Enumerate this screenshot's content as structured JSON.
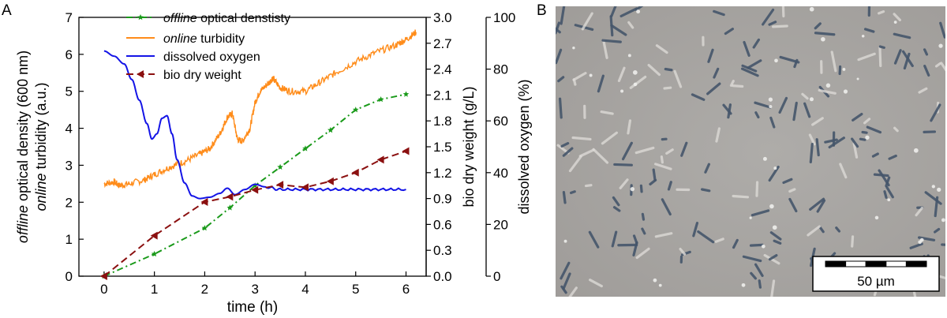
{
  "panels": {
    "a_label": "A",
    "b_label": "B"
  },
  "chart_data": {
    "type": "line",
    "xlabel": "time (h)",
    "xlim": [
      -0.5,
      6.4
    ],
    "xticks": [
      0,
      1,
      2,
      3,
      4,
      5,
      6
    ],
    "axes": {
      "left": {
        "label_line1_italic": "offline",
        "label_line1_rest": " optical density (600 nm)",
        "label_line2_italic": "online",
        "label_line2_rest": " turbidity (a.u.)",
        "ylim": [
          0,
          7
        ],
        "ticks": [
          0,
          1,
          2,
          3,
          4,
          5,
          6,
          7
        ]
      },
      "right1": {
        "label": "bio dry weight (g/L)",
        "ylim": [
          0,
          3.0
        ],
        "ticks": [
          "0.0",
          "0.3",
          "0.6",
          "0.9",
          "1.2",
          "1.5",
          "1.8",
          "2.1",
          "2.4",
          "2.7",
          "3.0"
        ]
      },
      "right2": {
        "label": "dissolved oxygen (%)",
        "ylim": [
          0,
          100
        ],
        "ticks": [
          0,
          20,
          40,
          60,
          80,
          100
        ]
      }
    },
    "series": [
      {
        "name_italic": "offline",
        "name_rest": " optical denstisty",
        "axis": "left",
        "color": "#1a9a1a",
        "style": "dashdot",
        "marker": "star",
        "x": [
          0,
          1,
          2,
          2.5,
          3,
          3.5,
          4,
          4.5,
          5,
          5.5,
          6
        ],
        "y": [
          0,
          0.6,
          1.3,
          1.85,
          2.45,
          2.95,
          3.45,
          3.95,
          4.5,
          4.78,
          4.92
        ]
      },
      {
        "name_italic": "online",
        "name_rest": " turbidity",
        "axis": "left",
        "color": "#ff8c1a",
        "style": "solid",
        "marker": "none",
        "noisy": true,
        "x": [
          0,
          0.2,
          0.3,
          0.5,
          0.8,
          1.0,
          1.3,
          1.6,
          1.9,
          2.1,
          2.3,
          2.45,
          2.55,
          2.65,
          2.75,
          2.9,
          3.0,
          3.1,
          3.25,
          3.35,
          3.5,
          3.7,
          4.0,
          4.3,
          4.6,
          5.0,
          5.4,
          5.8,
          6.0,
          6.2
        ],
        "y": [
          2.5,
          2.55,
          2.45,
          2.5,
          2.6,
          2.75,
          2.95,
          3.1,
          3.3,
          3.45,
          3.85,
          4.3,
          4.4,
          3.7,
          3.65,
          4.0,
          4.7,
          5.0,
          5.2,
          5.35,
          5.1,
          5.0,
          5.0,
          5.25,
          5.5,
          5.8,
          6.05,
          6.25,
          6.4,
          6.6
        ]
      },
      {
        "name": "dissolved oxygen",
        "axis": "right2",
        "color": "#1414e6",
        "style": "solid",
        "marker": "none",
        "x": [
          0,
          0.2,
          0.4,
          0.55,
          0.7,
          0.85,
          0.95,
          1.05,
          1.15,
          1.25,
          1.35,
          1.45,
          1.6,
          1.75,
          1.9,
          2.1,
          2.3,
          2.45,
          2.6,
          2.8,
          3.0,
          3.2,
          3.5,
          4.0,
          4.5,
          5.0,
          5.5,
          6.0
        ],
        "y": [
          87,
          85,
          82,
          76,
          68,
          59,
          53,
          55,
          61,
          62,
          55,
          45,
          36,
          31,
          30,
          30.5,
          32,
          34,
          31.5,
          33.5,
          35.5,
          34.5,
          33.5,
          33.5,
          33.5,
          33.5,
          33.5,
          33.5
        ]
      },
      {
        "name": "bio dry weight",
        "axis": "right1",
        "color": "#8b1010",
        "style": "dashed",
        "marker": "triangle-left",
        "x": [
          0,
          1,
          2,
          2.5,
          3,
          3.5,
          4,
          4.5,
          5,
          5.5,
          6
        ],
        "y": [
          0,
          0.47,
          0.86,
          0.92,
          1.0,
          1.06,
          1.03,
          1.1,
          1.2,
          1.35,
          1.45
        ]
      }
    ]
  },
  "micrograph": {
    "scale_bar_label": "50 µm"
  },
  "colors": {
    "micrograph_bg": "#a8a6a4",
    "cell_dark": "#45556a",
    "cell_light": "#dcdad6"
  }
}
